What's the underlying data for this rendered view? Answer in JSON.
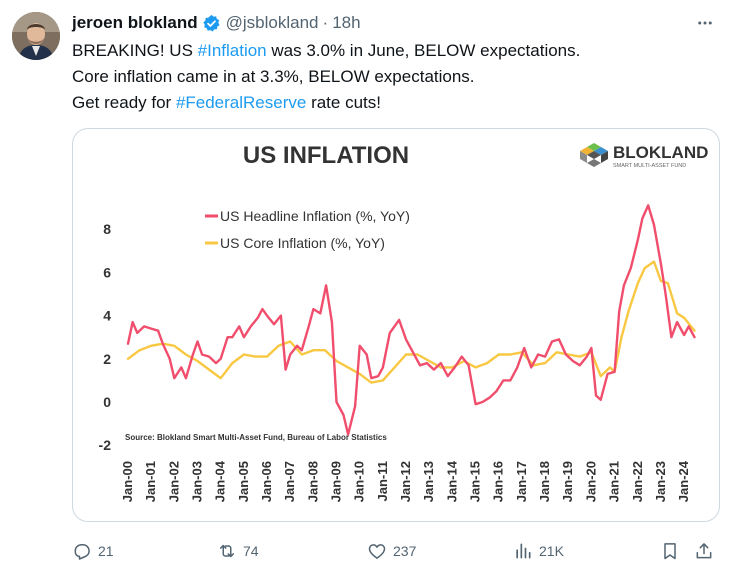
{
  "tweet": {
    "author_name": "jeroen blokland",
    "handle": "@jsblokland",
    "separator": "·",
    "time": "18h",
    "line1_pre": "BREAKING! US ",
    "line1_tag": "#Inflation",
    "line1_post": " was 3.0% in June, BELOW expectations.",
    "line2": "Core inflation came in at 3.3%, BELOW expectations.",
    "line3_pre": "Get ready for ",
    "line3_tag": "#FederalReserve",
    "line3_post": " rate cuts!"
  },
  "actions": {
    "replies": "21",
    "reposts": "74",
    "likes": "237",
    "views": "21K"
  },
  "icons": [
    "verified-badge-icon",
    "more-icon",
    "reply-icon",
    "repost-icon",
    "like-icon",
    "views-icon",
    "bookmark-icon",
    "share-icon"
  ],
  "colors": {
    "headline": "#f04e6c",
    "core": "#f9c842",
    "tag": "#1d9bf0",
    "verified": "#1d9bf0"
  },
  "chart_data": {
    "type": "line",
    "title": "US INFLATION",
    "brand": "BLOKLAND",
    "brand_subtitle": "SMART MULTI-ASSET FUND",
    "source": "Source: Blokland Smart Multi-Asset Fund, Bureau of Labor Statistics",
    "ylim": [
      -2,
      9.5
    ],
    "yticks": [
      -2,
      0,
      2,
      4,
      6,
      8
    ],
    "xlim": [
      2000,
      2024.6
    ],
    "xtick_labels": [
      "Jan-00",
      "Jan-01",
      "Jan-02",
      "Jan-03",
      "Jan-04",
      "Jan-05",
      "Jan-06",
      "Jan-07",
      "Jan-08",
      "Jan-09",
      "Jan-10",
      "Jan-11",
      "Jan-12",
      "Jan-13",
      "Jan-14",
      "Jan-15",
      "Jan-16",
      "Jan-17",
      "Jan-18",
      "Jan-19",
      "Jan-20",
      "Jan-21",
      "Jan-22",
      "Jan-23",
      "Jan-24"
    ],
    "grid": false,
    "legend_position": "top-left",
    "series": [
      {
        "name": "US Headline Inflation (%, YoY)",
        "color": "#f04e6c",
        "x": [
          2000.0,
          2000.2,
          2000.4,
          2000.7,
          2001.0,
          2001.3,
          2001.5,
          2001.8,
          2002.0,
          2002.3,
          2002.5,
          2002.8,
          2003.0,
          2003.2,
          2003.5,
          2003.8,
          2004.0,
          2004.3,
          2004.5,
          2004.8,
          2005.0,
          2005.3,
          2005.6,
          2005.8,
          2006.0,
          2006.3,
          2006.6,
          2006.8,
          2007.0,
          2007.3,
          2007.5,
          2007.8,
          2008.0,
          2008.3,
          2008.55,
          2008.8,
          2009.0,
          2009.3,
          2009.5,
          2009.8,
          2010.0,
          2010.3,
          2010.5,
          2010.8,
          2011.0,
          2011.3,
          2011.7,
          2012.0,
          2012.3,
          2012.6,
          2012.9,
          2013.2,
          2013.5,
          2013.8,
          2014.1,
          2014.4,
          2014.7,
          2015.0,
          2015.3,
          2015.6,
          2015.9,
          2016.2,
          2016.5,
          2016.8,
          2017.1,
          2017.4,
          2017.7,
          2018.0,
          2018.3,
          2018.6,
          2018.9,
          2019.2,
          2019.5,
          2019.8,
          2020.0,
          2020.2,
          2020.4,
          2020.7,
          2021.0,
          2021.2,
          2021.4,
          2021.7,
          2022.0,
          2022.2,
          2022.45,
          2022.7,
          2023.0,
          2023.2,
          2023.45,
          2023.7,
          2024.0,
          2024.2,
          2024.45
        ],
        "values": [
          2.7,
          3.7,
          3.2,
          3.5,
          3.4,
          3.3,
          2.7,
          2.0,
          1.1,
          1.6,
          1.1,
          2.2,
          2.8,
          2.2,
          2.1,
          1.8,
          2.0,
          3.0,
          3.0,
          3.5,
          3.0,
          3.5,
          3.9,
          4.3,
          4.0,
          3.6,
          4.0,
          1.5,
          2.2,
          2.6,
          2.4,
          3.5,
          4.3,
          4.1,
          5.4,
          3.7,
          0.0,
          -0.6,
          -1.5,
          -0.2,
          2.6,
          2.2,
          1.1,
          1.2,
          1.6,
          3.2,
          3.8,
          2.9,
          2.3,
          1.7,
          1.8,
          1.5,
          1.8,
          1.2,
          1.6,
          2.1,
          1.7,
          -0.1,
          0.0,
          0.2,
          0.5,
          1.0,
          1.0,
          1.6,
          2.5,
          1.6,
          2.2,
          2.1,
          2.8,
          2.9,
          2.2,
          1.9,
          1.7,
          2.1,
          2.5,
          0.3,
          0.1,
          1.3,
          1.4,
          4.2,
          5.4,
          6.2,
          7.5,
          8.5,
          9.1,
          8.2,
          6.4,
          5.0,
          3.0,
          3.7,
          3.1,
          3.5,
          3.0
        ]
      },
      {
        "name": "US Core Inflation (%, YoY)",
        "color": "#f9c842",
        "x": [
          2000.0,
          2000.5,
          2001.0,
          2001.5,
          2002.0,
          2002.5,
          2003.0,
          2003.5,
          2004.0,
          2004.5,
          2005.0,
          2005.5,
          2006.0,
          2006.5,
          2007.0,
          2007.5,
          2008.0,
          2008.5,
          2009.0,
          2009.5,
          2010.0,
          2010.5,
          2011.0,
          2011.5,
          2012.0,
          2012.5,
          2013.0,
          2013.5,
          2014.0,
          2014.5,
          2015.0,
          2015.5,
          2016.0,
          2016.5,
          2017.0,
          2017.5,
          2018.0,
          2018.5,
          2019.0,
          2019.5,
          2020.0,
          2020.4,
          2020.8,
          2021.0,
          2021.3,
          2021.6,
          2022.0,
          2022.3,
          2022.7,
          2023.0,
          2023.3,
          2023.7,
          2024.0,
          2024.45
        ],
        "values": [
          2.0,
          2.4,
          2.6,
          2.7,
          2.6,
          2.2,
          1.9,
          1.5,
          1.1,
          1.8,
          2.2,
          2.1,
          2.1,
          2.6,
          2.8,
          2.2,
          2.4,
          2.4,
          1.9,
          1.6,
          1.3,
          0.9,
          1.0,
          1.6,
          2.2,
          2.2,
          1.9,
          1.6,
          1.6,
          1.9,
          1.6,
          1.8,
          2.2,
          2.2,
          2.3,
          1.7,
          1.8,
          2.3,
          2.2,
          2.1,
          2.3,
          1.2,
          1.6,
          1.4,
          3.0,
          4.2,
          5.5,
          6.2,
          6.5,
          5.6,
          5.5,
          4.1,
          3.9,
          3.3
        ]
      }
    ]
  }
}
